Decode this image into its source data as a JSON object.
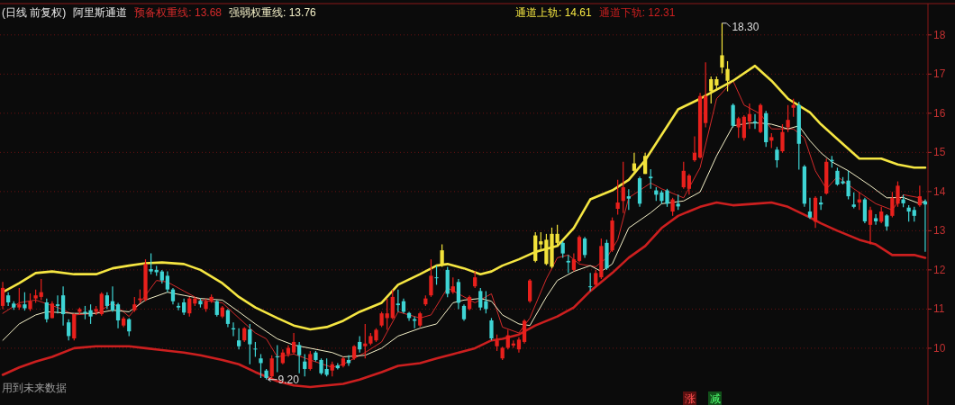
{
  "chart_data": {
    "type": "candlestick",
    "title": "阿里斯通道",
    "subtitle": "(日线 前复权)",
    "categories": [
      null,
      null,
      null,
      null,
      null,
      null,
      null,
      null,
      null,
      null,
      null,
      null,
      null,
      null,
      null,
      null,
      null,
      null,
      null,
      null,
      null,
      null,
      null,
      null,
      null,
      null,
      null,
      null,
      null,
      null,
      null,
      null,
      null,
      null,
      null,
      null,
      null,
      null,
      null,
      null,
      null,
      null,
      null,
      null,
      null,
      null,
      null,
      null,
      null,
      null,
      null,
      null,
      null,
      null,
      null,
      null,
      null,
      null,
      null,
      null,
      null,
      null,
      null,
      null,
      null,
      null,
      null,
      null,
      null,
      null,
      null,
      null,
      null,
      null,
      null,
      null,
      null,
      null,
      null,
      null,
      null,
      null,
      null,
      null,
      null,
      null,
      null,
      null,
      null,
      null,
      null,
      null,
      null,
      null,
      null,
      null,
      null,
      null,
      null,
      null,
      null,
      null,
      null,
      null,
      null,
      null,
      null,
      null,
      null,
      null,
      null,
      null,
      null,
      null,
      null,
      null,
      null,
      null,
      null,
      null,
      null,
      null,
      null,
      null,
      null,
      null,
      null,
      null,
      null,
      null,
      null,
      null,
      null,
      null,
      null,
      null,
      null,
      null,
      null,
      null,
      null,
      null,
      null,
      null,
      null,
      null,
      null,
      null,
      null,
      null,
      null,
      null,
      null,
      null,
      null,
      null,
      null,
      null,
      null,
      null,
      null,
      null,
      null,
      null,
      null,
      null,
      null,
      null,
      null
    ],
    "ohlc": [
      [
        11.08,
        11.69,
        11.0,
        11.54
      ],
      [
        11.35,
        11.43,
        11.08,
        11.17
      ],
      [
        11.14,
        11.2,
        10.98,
        11.04
      ],
      [
        11.04,
        11.54,
        10.98,
        11.12
      ],
      [
        11.12,
        11.43,
        10.96,
        11.02
      ],
      [
        11.0,
        11.4,
        10.95,
        11.2
      ],
      [
        11.27,
        11.5,
        11.16,
        11.35
      ],
      [
        11.31,
        11.77,
        11.23,
        11.43
      ],
      [
        11.17,
        11.27,
        10.66,
        10.74
      ],
      [
        10.77,
        11.2,
        10.76,
        11.14
      ],
      [
        11.12,
        11.35,
        10.89,
        11.08
      ],
      [
        11.35,
        11.58,
        10.58,
        10.87
      ],
      [
        10.66,
        10.74,
        10.2,
        10.31
      ],
      [
        10.25,
        10.89,
        10.2,
        10.87
      ],
      [
        10.93,
        11.04,
        10.85,
        11.0
      ],
      [
        10.93,
        11.08,
        10.74,
        10.89
      ],
      [
        10.97,
        11.12,
        10.62,
        10.81
      ],
      [
        10.93,
        11.08,
        10.85,
        11.0
      ],
      [
        10.87,
        11.43,
        10.83,
        11.39
      ],
      [
        11.35,
        11.43,
        11.0,
        11.08
      ],
      [
        11.2,
        11.58,
        10.93,
        10.97
      ],
      [
        11.12,
        11.16,
        10.51,
        10.71
      ],
      [
        10.58,
        10.81,
        10.54,
        10.76
      ],
      [
        10.74,
        10.77,
        10.31,
        10.43
      ],
      [
        10.97,
        11.31,
        10.93,
        11.12
      ],
      [
        11.23,
        11.5,
        11.16,
        11.27
      ],
      [
        11.23,
        12.27,
        11.2,
        12.15
      ],
      [
        12.02,
        12.42,
        11.89,
        11.96
      ],
      [
        12.0,
        12.1,
        11.85,
        11.94
      ],
      [
        11.96,
        12.0,
        11.65,
        11.73
      ],
      [
        11.85,
        11.96,
        11.43,
        11.5
      ],
      [
        11.5,
        11.54,
        11.12,
        11.2
      ],
      [
        11.08,
        11.16,
        10.97,
        11.04
      ],
      [
        11.17,
        11.27,
        10.85,
        10.91
      ],
      [
        10.89,
        11.31,
        10.81,
        11.27
      ],
      [
        11.14,
        11.31,
        11.08,
        11.27
      ],
      [
        11.21,
        11.27,
        11.04,
        11.12
      ],
      [
        11.0,
        11.27,
        10.93,
        11.2
      ],
      [
        11.2,
        11.37,
        11.16,
        11.31
      ],
      [
        11.2,
        11.23,
        10.81,
        10.85
      ],
      [
        10.81,
        11.08,
        10.77,
        11.04
      ],
      [
        10.97,
        11.0,
        10.54,
        10.62
      ],
      [
        10.51,
        10.66,
        10.31,
        10.48
      ],
      [
        10.2,
        10.51,
        9.97,
        10.05
      ],
      [
        10.2,
        10.54,
        10.16,
        10.51
      ],
      [
        10.48,
        10.62,
        9.59,
        10.1
      ],
      [
        9.99,
        10.16,
        9.78,
        9.97
      ],
      [
        9.74,
        9.85,
        9.24,
        9.62
      ],
      [
        9.43,
        9.47,
        9.2,
        9.24
      ],
      [
        9.28,
        9.82,
        9.22,
        9.74
      ],
      [
        9.79,
        10.08,
        9.39,
        9.77
      ],
      [
        9.62,
        9.97,
        9.59,
        9.89
      ],
      [
        9.85,
        10.08,
        9.78,
        10.01
      ],
      [
        9.89,
        10.39,
        9.85,
        10.16
      ],
      [
        10.08,
        10.16,
        9.36,
        9.82
      ],
      [
        9.66,
        9.85,
        9.28,
        9.47
      ],
      [
        9.47,
        9.93,
        9.43,
        9.85
      ],
      [
        9.89,
        9.93,
        9.66,
        9.7
      ],
      [
        9.7,
        9.74,
        9.32,
        9.36
      ],
      [
        9.47,
        9.74,
        9.28,
        9.32
      ],
      [
        9.43,
        9.66,
        9.28,
        9.59
      ],
      [
        9.56,
        9.62,
        9.46,
        9.49
      ],
      [
        9.55,
        9.78,
        9.51,
        9.74
      ],
      [
        9.7,
        9.82,
        9.55,
        9.62
      ],
      [
        9.74,
        10.08,
        9.7,
        10.05
      ],
      [
        10.16,
        10.31,
        9.89,
        9.97
      ],
      [
        10.05,
        10.62,
        9.74,
        10.12
      ],
      [
        10.12,
        10.39,
        10.08,
        10.31
      ],
      [
        10.2,
        10.51,
        10.16,
        10.47
      ],
      [
        10.58,
        10.93,
        10.54,
        10.89
      ],
      [
        10.77,
        11.27,
        10.47,
        10.89
      ],
      [
        10.77,
        11.5,
        10.74,
        11.31
      ],
      [
        11.14,
        11.5,
        10.93,
        11.1
      ],
      [
        11.2,
        11.27,
        10.89,
        10.93
      ],
      [
        10.9,
        10.93,
        10.7,
        10.77
      ],
      [
        10.74,
        10.81,
        10.51,
        10.7
      ],
      [
        10.58,
        10.93,
        10.54,
        10.89
      ],
      [
        11.12,
        11.35,
        11.08,
        11.27
      ],
      [
        11.35,
        12.27,
        11.31,
        11.85
      ],
      [
        11.81,
        12.11,
        11.62,
        11.79
      ],
      [
        12.11,
        12.65,
        12.08,
        12.5
      ],
      [
        12.0,
        12.08,
        11.3,
        11.39
      ],
      [
        11.43,
        11.81,
        11.39,
        11.58
      ],
      [
        11.69,
        11.77,
        11.0,
        11.16
      ],
      [
        11.08,
        11.12,
        10.7,
        10.74
      ],
      [
        11.0,
        11.35,
        10.97,
        11.31
      ],
      [
        11.58,
        11.96,
        11.54,
        11.81
      ],
      [
        11.46,
        11.54,
        10.97,
        11.04
      ],
      [
        11.2,
        11.46,
        10.89,
        11.0
      ],
      [
        10.71,
        10.77,
        10.2,
        10.25
      ],
      [
        10.05,
        10.35,
        9.93,
        10.2
      ],
      [
        9.74,
        10.04,
        9.7,
        10.01
      ],
      [
        10.01,
        10.47,
        9.97,
        10.33
      ],
      [
        10.07,
        10.2,
        10.01,
        10.12
      ],
      [
        9.97,
        10.28,
        9.89,
        10.22
      ],
      [
        10.16,
        10.74,
        10.12,
        10.7
      ],
      [
        11.2,
        11.77,
        11.16,
        11.73
      ],
      [
        12.23,
        12.96,
        12.19,
        12.88
      ],
      [
        12.65,
        12.96,
        12.5,
        12.73
      ],
      [
        12.15,
        12.92,
        12.12,
        12.77
      ],
      [
        12.08,
        13.08,
        12.04,
        12.92
      ],
      [
        12.69,
        13.15,
        12.61,
        12.92
      ],
      [
        12.69,
        12.73,
        12.31,
        12.42
      ],
      [
        12.23,
        12.38,
        11.92,
        12.19
      ],
      [
        12.0,
        12.42,
        11.96,
        12.27
      ],
      [
        12.23,
        12.88,
        12.19,
        12.84
      ],
      [
        12.8,
        12.84,
        12.31,
        12.38
      ],
      [
        11.58,
        11.92,
        11.46,
        11.56
      ],
      [
        11.62,
        12.0,
        11.58,
        11.92
      ],
      [
        11.81,
        12.8,
        11.77,
        12.61
      ],
      [
        12.69,
        12.77,
        12.0,
        12.04
      ],
      [
        12.5,
        13.34,
        12.46,
        13.26
      ],
      [
        13.56,
        14.3,
        13.41,
        13.72
      ],
      [
        13.76,
        14.76,
        13.45,
        14.11
      ],
      [
        13.88,
        14.06,
        13.53,
        13.82
      ],
      [
        14.53,
        14.99,
        14.45,
        14.72
      ],
      [
        14.34,
        14.38,
        13.61,
        13.69
      ],
      [
        14.45,
        14.99,
        14.45,
        14.91
      ],
      [
        14.38,
        14.57,
        14.07,
        14.34
      ],
      [
        14.03,
        14.11,
        13.76,
        13.92
      ],
      [
        13.98,
        14.03,
        13.69,
        13.76
      ],
      [
        14.03,
        14.07,
        13.61,
        13.69
      ],
      [
        13.49,
        13.84,
        13.38,
        13.8
      ],
      [
        13.69,
        13.92,
        13.53,
        13.62
      ],
      [
        14.11,
        14.76,
        14.07,
        14.53
      ],
      [
        14.07,
        14.45,
        13.92,
        14.41
      ],
      [
        14.8,
        15.41,
        14.76,
        14.99
      ],
      [
        14.87,
        16.52,
        14.84,
        16.44
      ],
      [
        15.75,
        17.3,
        15.64,
        16.44
      ],
      [
        16.56,
        16.94,
        16.25,
        16.87
      ],
      [
        16.71,
        16.94,
        16.6,
        16.87
      ],
      [
        17.17,
        18.3,
        17.02,
        17.48
      ],
      [
        16.83,
        17.33,
        16.56,
        17.13
      ],
      [
        16.21,
        16.25,
        15.64,
        15.68
      ],
      [
        15.64,
        15.91,
        15.37,
        15.87
      ],
      [
        15.37,
        15.95,
        15.3,
        15.91
      ],
      [
        15.79,
        16.25,
        15.6,
        15.98
      ],
      [
        15.79,
        15.98,
        15.6,
        15.75
      ],
      [
        15.52,
        16.25,
        15.49,
        16.21
      ],
      [
        16.0,
        16.06,
        15.14,
        15.26
      ],
      [
        15.3,
        15.49,
        15.11,
        15.39
      ],
      [
        15.07,
        15.14,
        14.61,
        14.8
      ],
      [
        15.03,
        15.72,
        14.99,
        15.52
      ],
      [
        15.64,
        16.21,
        15.52,
        15.83
      ],
      [
        16.14,
        16.37,
        15.91,
        16.21
      ],
      [
        16.21,
        16.29,
        14.56,
        15.22
      ],
      [
        14.64,
        14.68,
        13.61,
        13.69
      ],
      [
        13.49,
        13.84,
        13.3,
        13.34
      ],
      [
        13.23,
        13.88,
        13.07,
        13.84
      ],
      [
        13.72,
        13.88,
        13.53,
        13.67
      ],
      [
        13.95,
        14.84,
        13.92,
        14.76
      ],
      [
        14.81,
        14.91,
        14.61,
        14.77
      ],
      [
        14.53,
        14.61,
        14.15,
        14.18
      ],
      [
        14.26,
        14.37,
        14.18,
        14.21
      ],
      [
        14.28,
        14.53,
        13.8,
        13.88
      ],
      [
        13.67,
        13.98,
        13.57,
        13.61
      ],
      [
        13.72,
        13.99,
        13.53,
        13.8
      ],
      [
        13.8,
        13.84,
        13.19,
        13.24
      ],
      [
        13.15,
        13.61,
        12.65,
        13.53
      ],
      [
        13.32,
        13.42,
        13.15,
        13.24
      ],
      [
        13.23,
        13.61,
        13.19,
        13.49
      ],
      [
        13.39,
        13.42,
        13.0,
        13.11
      ],
      [
        13.38,
        13.99,
        13.34,
        13.84
      ],
      [
        13.69,
        14.26,
        13.61,
        14.15
      ],
      [
        13.8,
        13.92,
        13.6,
        13.7
      ],
      [
        13.59,
        13.65,
        13.23,
        13.49
      ],
      [
        13.53,
        13.61,
        13.23,
        13.38
      ],
      [
        13.65,
        14.15,
        13.61,
        13.88
      ],
      [
        13.75,
        13.8,
        12.46,
        13.67
      ]
    ],
    "colors": [
      "#e8201c",
      "#3ed4d4",
      "#3ed4d4",
      "#e8201c",
      "#3ed4d4",
      "#e8201c",
      "#e8201c",
      "#e8201c",
      "#3ed4d4",
      "#e8201c",
      "#3ed4d4",
      "#3ed4d4",
      "#3ed4d4",
      "#e8201c",
      "#e8201c",
      "#3ed4d4",
      "#3ed4d4",
      "#e8201c",
      "#e8201c",
      "#3ed4d4",
      "#3ed4d4",
      "#3ed4d4",
      "#e8201c",
      "#3ed4d4",
      "#e8201c",
      "#e8201c",
      "#e8201c",
      "#3ed4d4",
      "#3ed4d4",
      "#3ed4d4",
      "#3ed4d4",
      "#3ed4d4",
      "#3ed4d4",
      "#3ed4d4",
      "#e8201c",
      "#e8201c",
      "#3ed4d4",
      "#e8201c",
      "#e8201c",
      "#3ed4d4",
      "#e8201c",
      "#3ed4d4",
      "#3ed4d4",
      "#3ed4d4",
      "#e8201c",
      "#3ed4d4",
      "#3ed4d4",
      "#3ed4d4",
      "#3ed4d4",
      "#e8201c",
      "#3ed4d4",
      "#e8201c",
      "#e8201c",
      "#e8201c",
      "#3ed4d4",
      "#3ed4d4",
      "#e8201c",
      "#3ed4d4",
      "#3ed4d4",
      "#3ed4d4",
      "#e8201c",
      "#3ed4d4",
      "#e8201c",
      "#3ed4d4",
      "#e8201c",
      "#3ed4d4",
      "#e8201c",
      "#e8201c",
      "#e8201c",
      "#e8201c",
      "#e8201c",
      "#e8201c",
      "#3ed4d4",
      "#3ed4d4",
      "#3ed4d4",
      "#3ed4d4",
      "#e8201c",
      "#e8201c",
      "#e8201c",
      "#3ed4d4",
      "#f2e23a",
      "#3ed4d4",
      "#e8201c",
      "#3ed4d4",
      "#3ed4d4",
      "#e8201c",
      "#e8201c",
      "#3ed4d4",
      "#3ed4d4",
      "#3ed4d4",
      "#e8201c",
      "#e8201c",
      "#e8201c",
      "#e8201c",
      "#e8201c",
      "#e8201c",
      "#e8201c",
      "#f2e23a",
      "#f2e23a",
      "#f2e23a",
      "#f2e23a",
      "#f2e23a",
      "#3ed4d4",
      "#3ed4d4",
      "#e8201c",
      "#e8201c",
      "#3ed4d4",
      "#3ed4d4",
      "#e8201c",
      "#e8201c",
      "#3ed4d4",
      "#e8201c",
      "#e8201c",
      "#e8201c",
      "#3ed4d4",
      "#f2e23a",
      "#3ed4d4",
      "#f2e23a",
      "#3ed4d4",
      "#3ed4d4",
      "#3ed4d4",
      "#3ed4d4",
      "#e8201c",
      "#3ed4d4",
      "#e8201c",
      "#e8201c",
      "#e8201c",
      "#e8201c",
      "#e8201c",
      "#f2e23a",
      "#f2e23a",
      "#f2e23a",
      "#f2e23a",
      "#3ed4d4",
      "#e8201c",
      "#e8201c",
      "#e8201c",
      "#3ed4d4",
      "#e8201c",
      "#3ed4d4",
      "#e8201c",
      "#3ed4d4",
      "#e8201c",
      "#e8201c",
      "#e8201c",
      "#3ed4d4",
      "#3ed4d4",
      "#3ed4d4",
      "#e8201c",
      "#3ed4d4",
      "#e8201c",
      "#3ed4d4",
      "#3ed4d4",
      "#3ed4d4",
      "#3ed4d4",
      "#3ed4d4",
      "#e8201c",
      "#3ed4d4",
      "#e8201c",
      "#3ed4d4",
      "#e8201c",
      "#3ed4d4",
      "#e8201c",
      "#e8201c",
      "#3ed4d4",
      "#3ed4d4",
      "#3ed4d4",
      "#e8201c",
      "#3ed4d4"
    ],
    "series": [
      {
        "name": "预备权重线: 13.68",
        "color": "#d42a2a",
        "type": "line",
        "values": [
          10.89,
          null,
          null,
          11.16,
          null,
          null,
          11.23,
          null,
          null,
          null,
          11.04,
          null,
          null,
          10.85,
          null,
          null,
          null,
          10.89,
          null,
          null,
          11.16,
          null,
          null,
          10.81,
          null,
          11.16,
          null,
          null,
          11.73,
          null,
          11.69,
          null,
          null,
          11.46,
          null,
          null,
          11.23,
          null,
          null,
          null,
          11.16,
          null,
          null,
          10.77,
          null,
          null,
          10.39,
          null,
          10.24,
          null,
          9.78,
          null,
          null,
          9.85,
          null,
          null,
          9.7,
          null,
          null,
          null,
          9.51,
          null,
          9.59,
          null,
          null,
          null,
          9.89,
          null,
          null,
          10.16,
          null,
          null,
          10.93,
          null,
          null,
          null,
          10.77,
          null,
          10.85,
          null,
          null,
          11.54,
          null,
          11.39,
          null,
          null,
          11.16,
          null,
          null,
          11.39,
          null,
          10.54,
          null,
          null,
          10.39,
          null,
          10.77,
          null,
          null,
          11.77,
          null,
          12.31,
          null,
          12.38,
          null,
          12.15,
          null,
          null,
          12.08,
          null,
          12.31,
          null,
          12.77,
          null,
          13.84,
          null,
          null,
          null,
          14.22,
          null,
          14.07,
          null,
          null,
          null,
          13.84,
          null,
          null,
          14.61,
          null,
          null,
          16.37,
          null,
          null,
          16.83,
          null,
          16.21,
          null,
          null,
          15.98,
          null,
          15.6,
          null,
          null,
          null,
          15.6,
          null,
          15.37,
          null,
          14.53,
          null,
          14.07,
          null,
          14.38,
          null,
          null,
          14.07,
          null,
          null,
          null,
          13.69,
          null,
          null,
          13.53,
          null,
          13.92,
          null,
          null,
          13.84,
          13.68
        ]
      },
      {
        "name": "强弱权重线: 13.76",
        "color": "#f4f0c8",
        "type": "line",
        "values": [
          10.2,
          null,
          null,
          10.62,
          null,
          null,
          10.85,
          null,
          10.93,
          null,
          null,
          null,
          null,
          10.89,
          null,
          null,
          null,
          10.89,
          null,
          null,
          10.97,
          null,
          null,
          10.93,
          null,
          null,
          11.23,
          null,
          null,
          null,
          11.43,
          null,
          null,
          11.35,
          null,
          null,
          11.27,
          null,
          null,
          null,
          11.23,
          null,
          null,
          10.93,
          null,
          null,
          10.62,
          null,
          null,
          null,
          10.24,
          null,
          null,
          10.08,
          null,
          null,
          10.0,
          null,
          null,
          null,
          9.89,
          null,
          9.78,
          null,
          null,
          null,
          9.82,
          null,
          null,
          10.0,
          null,
          null,
          10.31,
          null,
          null,
          null,
          10.51,
          null,
          null,
          10.62,
          null,
          null,
          11.16,
          null,
          11.23,
          null,
          null,
          11.27,
          null,
          11.2,
          null,
          10.85,
          null,
          null,
          10.62,
          null,
          10.58,
          null,
          null,
          11.31,
          null,
          11.73,
          null,
          null,
          11.96,
          null,
          null,
          12.11,
          null,
          11.96,
          null,
          12.15,
          null,
          null,
          13.07,
          null,
          null,
          null,
          13.46,
          null,
          13.69,
          null,
          null,
          null,
          13.76,
          null,
          null,
          13.99,
          null,
          null,
          14.91,
          null,
          null,
          15.68,
          null,
          null,
          15.75,
          null,
          15.75,
          null,
          15.72,
          null,
          null,
          15.6,
          null,
          15.68,
          null,
          15.3,
          null,
          14.99,
          null,
          14.76,
          null,
          null,
          14.53,
          null,
          null,
          null,
          14.15,
          null,
          null,
          13.84,
          null,
          null,
          13.85,
          null,
          null,
          13.69,
          13.76
        ]
      },
      {
        "name": "通道上轨: 14.61",
        "color": "#f5e642",
        "type": "line",
        "values": [
          11.43,
          null,
          null,
          11.66,
          null,
          null,
          11.92,
          null,
          null,
          11.96,
          null,
          null,
          null,
          11.89,
          null,
          null,
          null,
          11.89,
          null,
          null,
          12.04,
          null,
          null,
          12.11,
          null,
          null,
          12.17,
          null,
          null,
          12.19,
          null,
          null,
          null,
          12.15,
          null,
          null,
          12.0,
          null,
          null,
          null,
          11.66,
          null,
          null,
          11.31,
          null,
          null,
          11.04,
          null,
          null,
          null,
          10.77,
          null,
          null,
          10.58,
          null,
          null,
          10.48,
          null,
          null,
          10.54,
          null,
          null,
          10.7,
          null,
          null,
          10.93,
          null,
          null,
          null,
          11.16,
          null,
          null,
          11.62,
          null,
          null,
          null,
          11.89,
          null,
          null,
          12.11,
          null,
          12.15,
          null,
          null,
          12.04,
          null,
          null,
          11.89,
          null,
          11.96,
          null,
          12.11,
          null,
          null,
          12.27,
          null,
          null,
          12.46,
          null,
          null,
          null,
          12.61,
          null,
          null,
          13.07,
          null,
          null,
          13.8,
          null,
          null,
          null,
          14.03,
          null,
          null,
          14.3,
          null,
          null,
          14.8,
          null,
          null,
          15.45,
          null,
          null,
          16.1,
          null,
          null,
          null,
          16.37,
          null,
          null,
          16.6,
          null,
          null,
          16.83,
          null,
          null,
          null,
          17.21,
          null,
          null,
          16.83,
          null,
          null,
          16.37,
          null,
          null,
          null,
          16.02,
          null,
          15.72,
          null,
          null,
          15.34,
          null,
          null,
          null,
          14.84,
          null,
          null,
          null,
          14.84,
          null,
          null,
          14.69,
          null,
          null,
          14.61,
          null,
          14.61
        ]
      },
      {
        "name": "通道下轨: 12.31",
        "color": "#cc1f1f",
        "type": "line",
        "values": [
          9.32,
          null,
          null,
          9.51,
          null,
          null,
          9.66,
          null,
          null,
          9.78,
          null,
          null,
          null,
          10.0,
          null,
          null,
          null,
          10.05,
          null,
          null,
          10.05,
          null,
          null,
          10.05,
          null,
          null,
          10.0,
          null,
          null,
          9.95,
          null,
          null,
          null,
          9.89,
          null,
          null,
          9.82,
          null,
          null,
          null,
          9.7,
          null,
          null,
          9.59,
          null,
          null,
          9.39,
          null,
          null,
          null,
          9.16,
          null,
          null,
          9.05,
          null,
          null,
          9.01,
          null,
          null,
          9.05,
          null,
          null,
          9.09,
          null,
          null,
          9.2,
          null,
          null,
          null,
          9.39,
          null,
          null,
          9.55,
          null,
          null,
          null,
          9.62,
          null,
          null,
          9.74,
          null,
          null,
          9.85,
          null,
          null,
          null,
          10.0,
          null,
          null,
          10.2,
          null,
          10.24,
          null,
          null,
          10.35,
          null,
          null,
          10.58,
          null,
          null,
          null,
          10.81,
          null,
          null,
          11.04,
          null,
          null,
          11.46,
          null,
          null,
          null,
          11.92,
          null,
          null,
          12.31,
          null,
          null,
          12.61,
          null,
          null,
          13.07,
          null,
          null,
          13.38,
          null,
          null,
          null,
          13.61,
          null,
          null,
          13.72,
          null,
          null,
          13.65,
          null,
          null,
          null,
          13.69,
          null,
          null,
          13.72,
          null,
          null,
          13.61,
          null,
          null,
          null,
          13.34,
          null,
          13.19,
          null,
          null,
          13.0,
          null,
          null,
          null,
          12.77,
          null,
          null,
          12.65,
          null,
          null,
          12.38,
          null,
          null,
          null,
          12.38,
          null,
          12.31
        ]
      }
    ],
    "ylim": [
      8.55,
      18.8
    ],
    "yticks": [
      10,
      11,
      12,
      13,
      14,
      15,
      16,
      17,
      18
    ],
    "grid": "y",
    "legend": "top",
    "tick_labels": "y",
    "annotations": [
      "18.30",
      "9.20",
      "用到未来数据",
      "涨",
      "减"
    ]
  }
}
